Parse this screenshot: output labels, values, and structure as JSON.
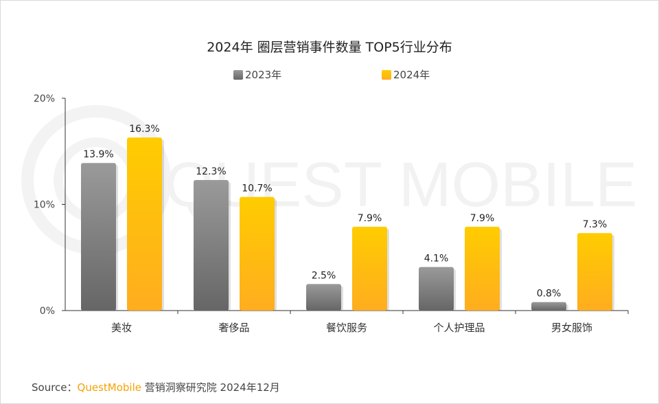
{
  "title": "2024年 圈层营销事件数量 TOP5行业分布",
  "watermark": "QUEST MOBILE",
  "source": {
    "prefix": "Source：",
    "brand": "QuestMobile",
    "suffix": " 营销洞察研究院 2024年12月"
  },
  "colors": {
    "series_2023": "#7a7a7a",
    "series_2024": "#ffc000"
  },
  "chart_data": {
    "type": "bar",
    "title": "2024年 圈层营销事件数量 TOP5行业分布",
    "categories": [
      "美妆",
      "奢侈品",
      "餐饮服务",
      "个人护理品",
      "男女服饰"
    ],
    "series": [
      {
        "name": "2023年",
        "values": [
          13.9,
          12.3,
          2.5,
          4.1,
          0.8
        ],
        "labels": [
          "13.9%",
          "12.3%",
          "2.5%",
          "4.1%",
          "0.8%"
        ]
      },
      {
        "name": "2024年",
        "values": [
          16.3,
          10.7,
          7.9,
          7.9,
          7.3
        ],
        "labels": [
          "16.3%",
          "10.7%",
          "7.9%",
          "7.9%",
          "7.3%"
        ]
      }
    ],
    "ylim": [
      0,
      20
    ],
    "yticks": [
      "0%",
      "10%",
      "20%"
    ],
    "ytick_values": [
      0,
      10,
      20
    ],
    "legend_position": "top",
    "grid": false
  }
}
